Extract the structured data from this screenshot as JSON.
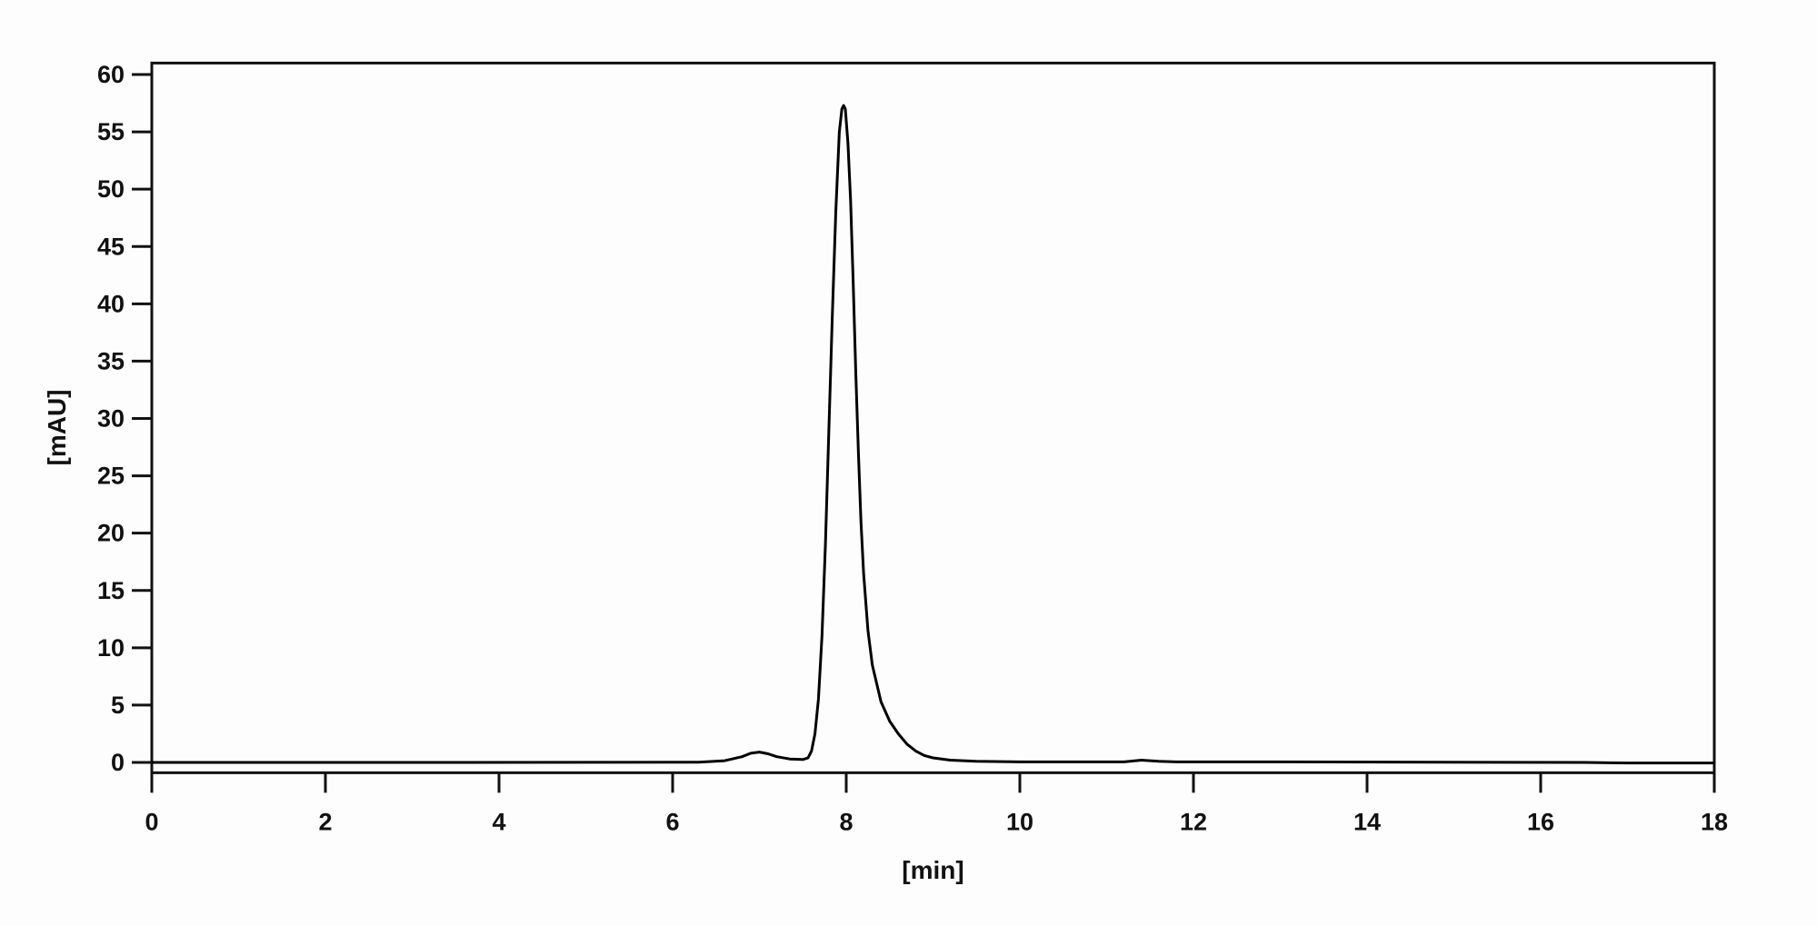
{
  "chart_data": {
    "type": "line",
    "title": "",
    "xlabel": "[min]",
    "ylabel": "[mAU]",
    "xlim": [
      0,
      18
    ],
    "ylim": [
      -0.9,
      61
    ],
    "xticks": [
      0,
      2,
      4,
      6,
      8,
      10,
      12,
      14,
      16,
      18
    ],
    "yticks": [
      0,
      5,
      10,
      15,
      20,
      25,
      30,
      35,
      40,
      45,
      50,
      55,
      60
    ],
    "grid": false,
    "line_color": "#000000",
    "series": [
      {
        "x": [
          0,
          3,
          6.3,
          6.6,
          6.8,
          6.9,
          7.0,
          7.1,
          7.2,
          7.35,
          7.5,
          7.56,
          7.6,
          7.64,
          7.68,
          7.72,
          7.76,
          7.8,
          7.84,
          7.88,
          7.92,
          7.95,
          7.97,
          7.99,
          8.02,
          8.05,
          8.08,
          8.11,
          8.14,
          8.17,
          8.2,
          8.25,
          8.3,
          8.4,
          8.5,
          8.6,
          8.7,
          8.8,
          8.9,
          9.0,
          9.2,
          9.5,
          10,
          11.2,
          11.4,
          11.6,
          11.8,
          13,
          16.5,
          17,
          18
        ],
        "y": [
          0,
          0,
          0.02,
          0.15,
          0.5,
          0.8,
          0.9,
          0.75,
          0.5,
          0.3,
          0.25,
          0.4,
          1.0,
          2.5,
          5.5,
          11,
          19,
          29,
          39,
          48,
          55,
          57,
          57.3,
          57,
          54,
          49,
          42,
          34,
          27,
          21,
          16.5,
          11.5,
          8.5,
          5.3,
          3.6,
          2.5,
          1.6,
          1.0,
          0.6,
          0.4,
          0.2,
          0.1,
          0.05,
          0.05,
          0.2,
          0.1,
          0.05,
          0.05,
          0.0,
          -0.05,
          -0.05
        ]
      }
    ]
  }
}
